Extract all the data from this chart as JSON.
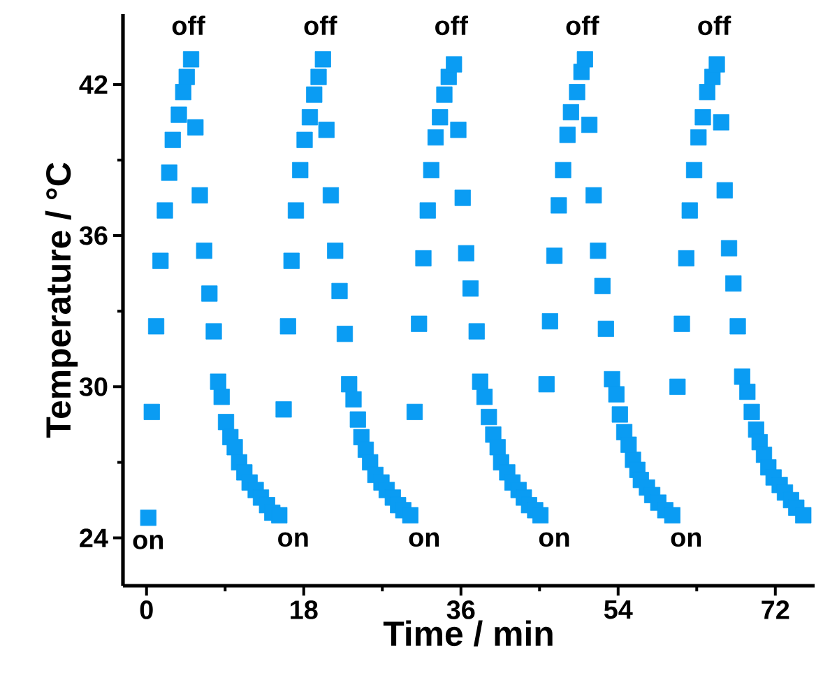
{
  "chart_data": {
    "type": "scatter",
    "xlabel": "Time / min",
    "ylabel": "Temperature / °C",
    "xlim": [
      -2.7,
      76.5
    ],
    "ylim": [
      22.1,
      44.8
    ],
    "xticks": [
      0,
      18,
      36,
      54,
      72
    ],
    "yticks": [
      24,
      30,
      36,
      42
    ],
    "marker": "square",
    "grid": false,
    "series": [
      {
        "color": "#0a9cf3",
        "x": [
          0.2,
          0.6,
          1.1,
          1.6,
          2.1,
          2.6,
          3.0,
          3.7,
          4.2,
          4.6,
          5.1,
          5.6,
          6.1,
          6.6,
          7.2,
          7.7,
          8.2,
          8.6,
          9.1,
          9.6,
          10.1,
          10.6,
          11.2,
          11.8,
          12.5,
          13.1,
          13.8,
          14.4,
          15.2,
          15.7,
          16.2,
          16.6,
          17.1,
          17.6,
          18.1,
          18.7,
          19.2,
          19.7,
          20.2,
          20.6,
          21.1,
          21.6,
          22.1,
          22.7,
          23.2,
          23.7,
          24.2,
          24.6,
          25.1,
          25.6,
          26.2,
          26.9,
          27.5,
          28.2,
          28.8,
          29.4,
          30.2,
          30.7,
          31.2,
          31.7,
          32.2,
          32.6,
          33.1,
          33.6,
          34.1,
          34.6,
          35.2,
          35.7,
          36.2,
          36.6,
          37.1,
          37.8,
          38.2,
          38.7,
          39.2,
          39.7,
          40.2,
          40.6,
          41.3,
          41.9,
          42.6,
          43.2,
          43.8,
          44.5,
          45.1,
          45.8,
          46.2,
          46.7,
          47.2,
          47.7,
          48.2,
          48.6,
          49.3,
          49.8,
          50.2,
          50.7,
          51.2,
          51.7,
          52.2,
          52.6,
          53.3,
          53.8,
          54.2,
          54.7,
          55.2,
          55.7,
          56.2,
          56.6,
          57.3,
          57.9,
          58.6,
          59.4,
          60.2,
          60.8,
          61.3,
          61.8,
          62.2,
          62.7,
          63.2,
          63.7,
          64.2,
          64.8,
          65.3,
          65.8,
          66.2,
          66.7,
          67.2,
          67.7,
          68.2,
          68.8,
          69.3,
          69.8,
          70.2,
          70.7,
          71.2,
          71.8,
          72.5,
          73.1,
          73.8,
          74.4,
          75.2
        ],
        "values": [
          24.8,
          29.0,
          32.4,
          35.0,
          37.0,
          38.5,
          39.8,
          40.8,
          41.7,
          42.3,
          43.0,
          40.3,
          37.6,
          35.4,
          33.7,
          32.2,
          30.2,
          29.6,
          28.6,
          28.0,
          27.6,
          27.0,
          26.6,
          26.2,
          25.9,
          25.6,
          25.3,
          25.0,
          24.9,
          29.1,
          32.4,
          35.0,
          37.0,
          38.6,
          39.8,
          40.7,
          41.6,
          42.3,
          43.0,
          40.2,
          37.6,
          35.4,
          33.8,
          32.1,
          30.1,
          29.5,
          28.7,
          28.0,
          27.5,
          27.0,
          26.5,
          26.2,
          25.9,
          25.6,
          25.3,
          25.1,
          24.9,
          29.0,
          32.5,
          35.1,
          37.0,
          38.6,
          39.9,
          40.7,
          41.6,
          42.3,
          42.8,
          40.2,
          37.5,
          35.3,
          33.9,
          32.2,
          30.2,
          29.6,
          28.8,
          28.1,
          27.6,
          27.0,
          26.6,
          26.2,
          25.9,
          25.6,
          25.3,
          25.1,
          24.9,
          30.1,
          32.6,
          35.2,
          37.2,
          38.6,
          40.0,
          40.9,
          41.7,
          42.5,
          43.0,
          40.4,
          37.6,
          35.4,
          34.0,
          32.3,
          30.3,
          29.7,
          28.9,
          28.2,
          27.7,
          27.1,
          26.7,
          26.3,
          26.0,
          25.7,
          25.4,
          25.1,
          24.9,
          30.0,
          32.5,
          35.1,
          37.0,
          38.6,
          39.9,
          40.7,
          41.7,
          42.3,
          42.8,
          40.5,
          37.8,
          35.5,
          34.1,
          32.4,
          30.4,
          29.8,
          29.0,
          28.3,
          27.8,
          27.3,
          26.8,
          26.4,
          26.1,
          25.8,
          25.5,
          25.2,
          24.9
        ]
      }
    ],
    "annotations": [
      "off",
      "off",
      "off",
      "off",
      "off",
      "on",
      "on",
      "on",
      "on",
      "on"
    ]
  }
}
